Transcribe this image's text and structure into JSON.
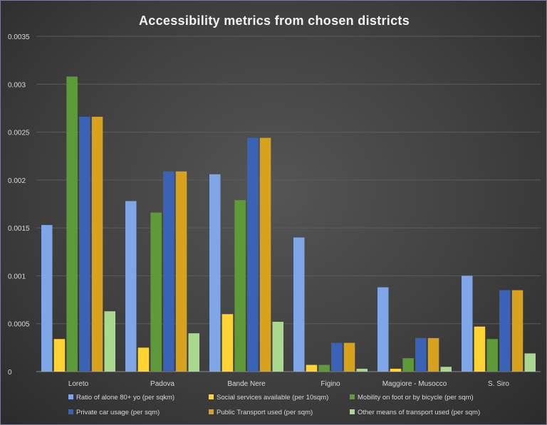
{
  "chart_data": {
    "type": "bar",
    "title": "Accessibility metrics from chosen districts",
    "categories": [
      "Loreto",
      "Padova",
      "Bande Nere",
      "Figino",
      "Maggiore - Musocco",
      "S. Siro"
    ],
    "ylim": [
      0,
      0.0035
    ],
    "yticks": [
      "0",
      "0.0005",
      "0.001",
      "0.0015",
      "0.002",
      "0.0025",
      "0.003",
      "0.0035"
    ],
    "ytick_values": [
      0,
      0.0005,
      0.001,
      0.0015,
      0.002,
      0.0025,
      0.003,
      0.0035
    ],
    "grid": true,
    "legend_position": "bottom",
    "series": [
      {
        "name": "Ratio of alone 80+ yo (per sqkm)",
        "color": "#7fa6e6",
        "values": [
          0.00153,
          0.00178,
          0.00206,
          0.0014,
          0.00088,
          0.001
        ]
      },
      {
        "name": "Social services available (per 10sqm)",
        "color": "#ffd333",
        "values": [
          0.00034,
          0.00025,
          0.0006,
          7e-05,
          3e-05,
          0.00047
        ]
      },
      {
        "name": "Mobility on foot or by bicycle (per sqm)",
        "color": "#5f9a3a",
        "values": [
          0.00308,
          0.00166,
          0.00179,
          7e-05,
          0.00014,
          0.00034
        ]
      },
      {
        "name": "Private car usage (per sqm)",
        "color": "#3a63b8",
        "values": [
          0.00266,
          0.00209,
          0.00244,
          0.0003,
          0.00035,
          0.00085
        ]
      },
      {
        "name": "Public Transport used (per sqm)",
        "color": "#d9a21c",
        "values": [
          0.00266,
          0.00209,
          0.00244,
          0.0003,
          0.00035,
          0.00085
        ]
      },
      {
        "name": "Other means of transport used (per sqm)",
        "color": "#a9d98e",
        "values": [
          0.00063,
          0.0004,
          0.00052,
          3e-05,
          5e-05,
          0.00019
        ]
      }
    ]
  }
}
